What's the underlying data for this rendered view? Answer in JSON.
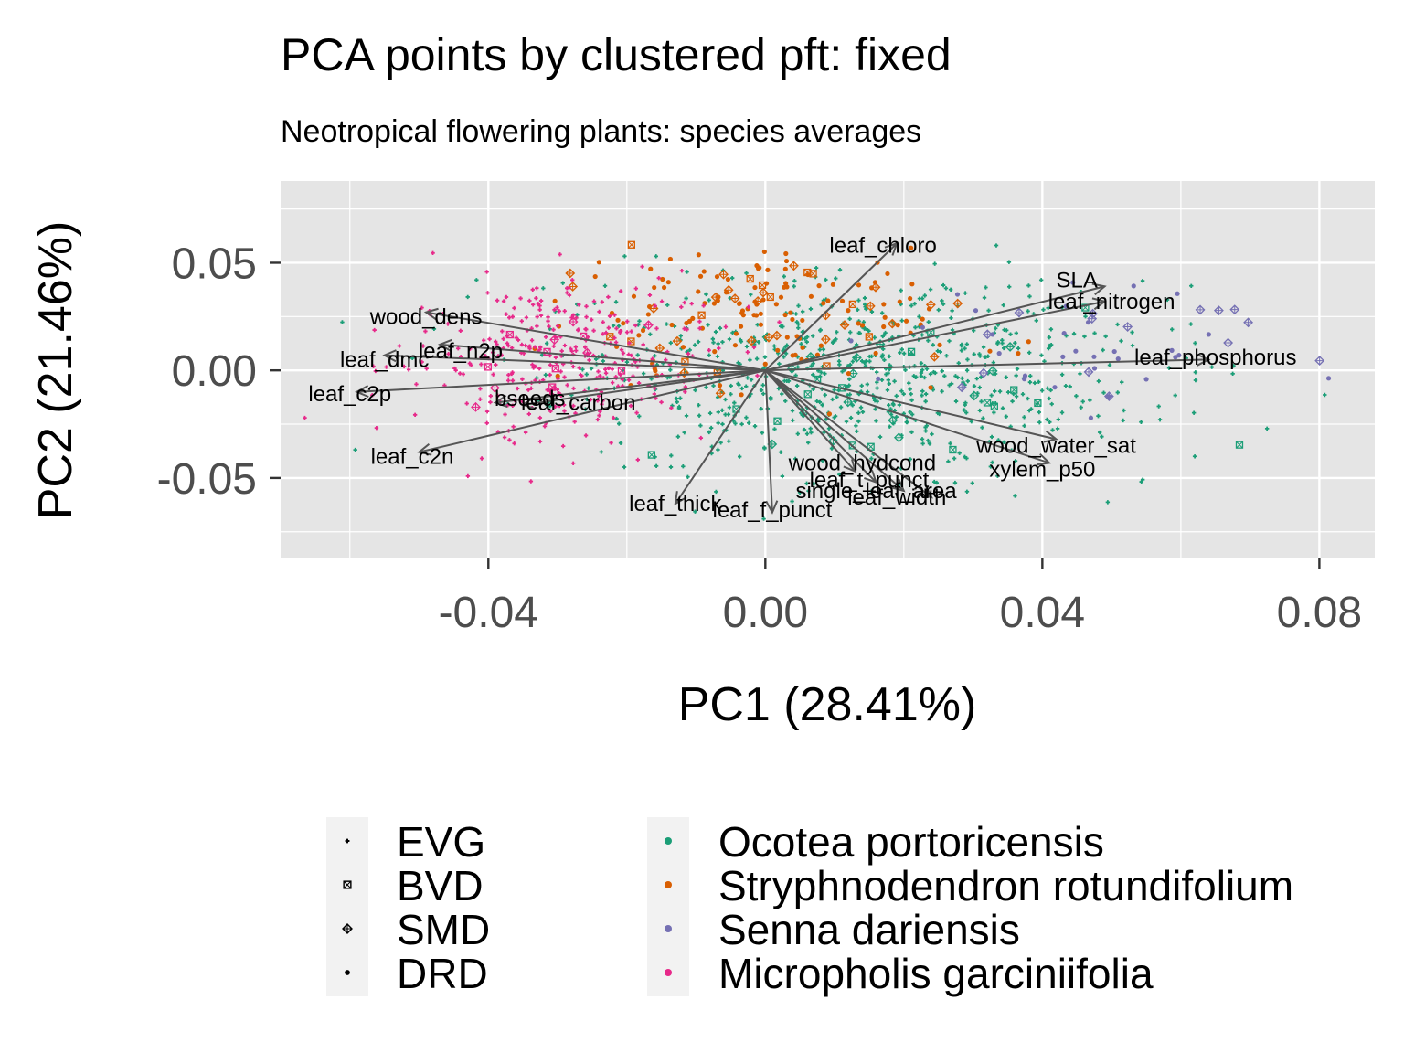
{
  "chart_data": {
    "type": "scatter",
    "title": "PCA points by clustered pft: fixed",
    "subtitle": "Neotropical flowering plants: species averages",
    "xlabel": "PC1 (28.41%)",
    "ylabel": "PC2 (21.46%)",
    "xlim": [
      -0.07,
      0.088
    ],
    "ylim": [
      -0.087,
      0.088
    ],
    "x_ticks": [
      -0.04,
      0.0,
      0.04,
      0.08
    ],
    "x_tick_labels": [
      "-0.04",
      "0.00",
      "0.04",
      "0.08"
    ],
    "y_ticks": [
      -0.05,
      0.0,
      0.05
    ],
    "y_tick_labels": [
      "-0.05",
      "0.00",
      "0.05"
    ],
    "grid": true,
    "legend_position": "bottom",
    "shape_legend": [
      {
        "label": "EVG",
        "shape": "plus"
      },
      {
        "label": "BVD",
        "shape": "square-cross"
      },
      {
        "label": "SMD",
        "shape": "diamond-plus"
      },
      {
        "label": "DRD",
        "shape": "dot"
      }
    ],
    "series": [
      {
        "name": "Ocotea portoricensis",
        "color": "#1b9e77",
        "center": [
          0.012,
          -0.003
        ],
        "spread": [
          0.021,
          0.022
        ],
        "count": 800
      },
      {
        "name": "Stryphnodendron rotundifolium",
        "color": "#d95f02",
        "center": [
          0.0,
          0.025
        ],
        "spread": [
          0.014,
          0.016
        ],
        "count": 170
      },
      {
        "name": "Senna dariensis",
        "color": "#7570b3",
        "center": [
          0.045,
          0.012
        ],
        "spread": [
          0.014,
          0.014
        ],
        "count": 45
      },
      {
        "name": "Micropholis garciniifolia",
        "color": "#e7298a",
        "center": [
          -0.03,
          0.005
        ],
        "spread": [
          0.011,
          0.018
        ],
        "count": 360
      }
    ],
    "loadings": [
      {
        "label": "leaf_chloro",
        "x": 0.019,
        "y": 0.059,
        "lx": 0.017,
        "ly": 0.058
      },
      {
        "label": "SLA",
        "x": 0.049,
        "y": 0.039,
        "lx": 0.045,
        "ly": 0.042
      },
      {
        "label": "leaf_nitrogen",
        "x": 0.049,
        "y": 0.032,
        "lx": 0.05,
        "ly": 0.032
      },
      {
        "label": "leaf_phosphorus",
        "x": 0.064,
        "y": 0.005,
        "lx": 0.065,
        "ly": 0.006
      },
      {
        "label": "wood_dens",
        "x": -0.049,
        "y": 0.027,
        "lx": -0.049,
        "ly": 0.025
      },
      {
        "label": "leaf_n2p",
        "x": -0.047,
        "y": 0.012,
        "lx": -0.044,
        "ly": 0.009
      },
      {
        "label": "leaf_dmc",
        "x": -0.055,
        "y": 0.007,
        "lx": -0.055,
        "ly": 0.005
      },
      {
        "label": "leaf_c2p",
        "x": -0.059,
        "y": -0.01,
        "lx": -0.06,
        "ly": -0.011
      },
      {
        "label": "bseeds",
        "x": -0.039,
        "y": -0.015,
        "lx": -0.034,
        "ly": -0.013
      },
      {
        "label": "leaf_carbon",
        "x": -0.035,
        "y": -0.016,
        "lx": -0.027,
        "ly": -0.015
      },
      {
        "label": "leaf_c2n",
        "x": -0.05,
        "y": -0.038,
        "lx": -0.051,
        "ly": -0.04
      },
      {
        "label": "leaf_thick",
        "x": -0.013,
        "y": -0.062,
        "lx": -0.013,
        "ly": -0.062
      },
      {
        "label": "leaf_f_punct",
        "x": 0.001,
        "y": -0.066,
        "lx": 0.001,
        "ly": -0.065
      },
      {
        "label": "wood_hydcond",
        "x": 0.013,
        "y": -0.047,
        "lx": 0.014,
        "ly": -0.043
      },
      {
        "label": "leaf_t_punct",
        "x": 0.016,
        "y": -0.052,
        "lx": 0.015,
        "ly": -0.051
      },
      {
        "label": "single_leaf_area",
        "x": 0.02,
        "y": -0.056,
        "lx": 0.016,
        "ly": -0.056
      },
      {
        "label": "leaf_width",
        "x": 0.024,
        "y": -0.059,
        "lx": 0.019,
        "ly": -0.059
      },
      {
        "label": "wood_water_sat",
        "x": 0.042,
        "y": -0.032,
        "lx": 0.042,
        "ly": -0.035
      },
      {
        "label": "xylem_p50",
        "x": 0.041,
        "y": -0.043,
        "lx": 0.04,
        "ly": -0.046
      }
    ]
  },
  "colors": {
    "panel_bg": "#e5e5e5",
    "grid_major": "#ffffff",
    "arrow": "#555555",
    "tick_text": "#4d4d4d"
  }
}
